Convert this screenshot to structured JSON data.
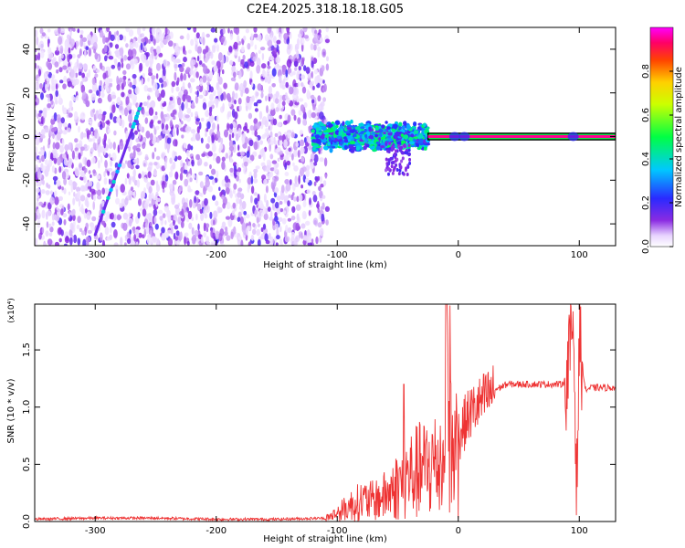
{
  "title": "C2E4.2025.318.18.18.G05",
  "chart_data": [
    {
      "type": "heatmap",
      "xlabel": "Height of straight line (km)",
      "ylabel": "Frequency (Hz)",
      "xlim": [
        -350,
        130
      ],
      "ylim": [
        -50,
        50
      ],
      "x_ticks": [
        -300,
        -200,
        -100,
        0,
        100
      ],
      "y_ticks": [
        -40,
        -20,
        0,
        20,
        40
      ],
      "colorbar": {
        "label": "Normalized spectral amplitude",
        "range": [
          0,
          1
        ],
        "ticks": [
          "0.0",
          "0.2",
          "0.4",
          "0.6",
          "0.8"
        ]
      },
      "features": [
        {
          "kind": "noise-field",
          "x_range": [
            -350,
            -108
          ],
          "y_range": [
            -50,
            50
          ],
          "level": 0.1
        },
        {
          "kind": "diagonal-streak",
          "from": [
            -300,
            -45
          ],
          "to": [
            -262,
            15
          ],
          "level": 0.15
        },
        {
          "kind": "band",
          "x_range": [
            -120,
            -25
          ],
          "y_center": 0,
          "half_width": 5,
          "level": 0.45
        },
        {
          "kind": "band",
          "x_range": [
            -25,
            130
          ],
          "y_center": 0,
          "half_width": 1.5,
          "level": 0.95
        }
      ]
    },
    {
      "type": "line",
      "xlabel": "Height of straight line (km)",
      "ylabel": "SNR (10 * v/v)",
      "y_multiplier": "(x10⁴)",
      "xlim": [
        -350,
        130
      ],
      "ylim": [
        0,
        1.9
      ],
      "x_ticks": [
        -300,
        -200,
        -100,
        0,
        100
      ],
      "y_ticks": [
        "0.0",
        "0.5",
        "1.0",
        "1.5"
      ],
      "series": [
        {
          "color": "#ee3333",
          "x": [
            -350,
            -300,
            -250,
            -200,
            -150,
            -110,
            -100,
            -90,
            -80,
            -70,
            -60,
            -50,
            -40,
            -30,
            -20,
            -12,
            -10,
            -5,
            0,
            5,
            10,
            15,
            20,
            25,
            30,
            40,
            50,
            60,
            70,
            80,
            85,
            90,
            95,
            98,
            100,
            105,
            110,
            120,
            130
          ],
          "y": [
            0.02,
            0.03,
            0.03,
            0.02,
            0.02,
            0.03,
            0.08,
            0.15,
            0.2,
            0.2,
            0.25,
            0.35,
            0.45,
            0.5,
            0.55,
            0.6,
            1.9,
            0.65,
            0.75,
            0.85,
            0.95,
            1.0,
            1.05,
            1.1,
            1.15,
            1.2,
            1.2,
            1.2,
            1.2,
            1.2,
            1.2,
            1.25,
            1.8,
            0.3,
            1.6,
            1.15,
            1.17,
            1.17,
            1.17
          ]
        }
      ]
    }
  ]
}
